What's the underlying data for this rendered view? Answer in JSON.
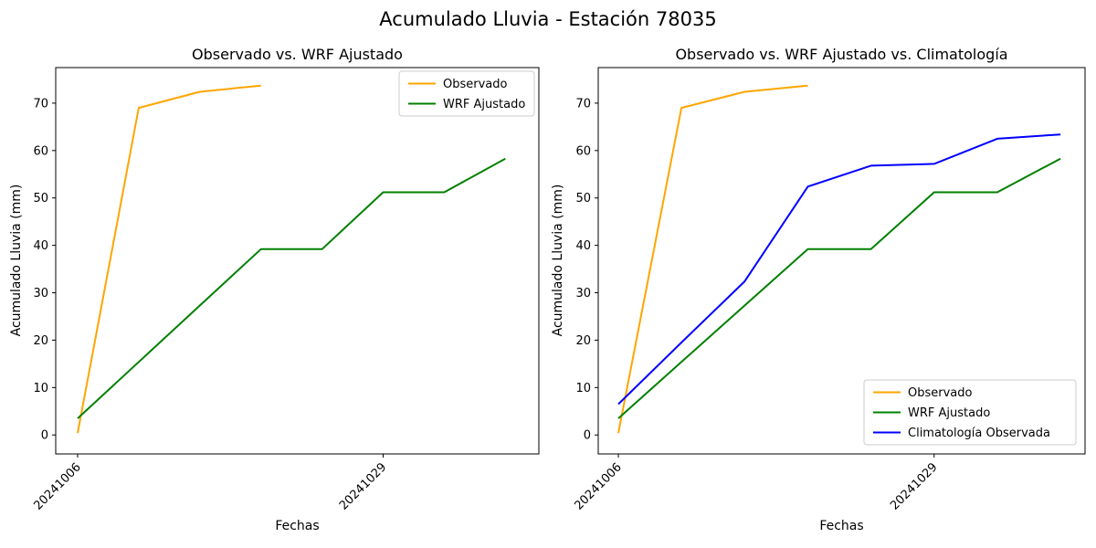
{
  "suptitle": "Acumulado Lluvia - Estación 78035",
  "chart_data": [
    {
      "type": "line",
      "title": "Observado vs. WRF Ajustado",
      "xlabel": "Fechas",
      "ylabel": "Acumulado Lluvia (mm)",
      "x_count": 8,
      "x_ticks": [
        {
          "index": 0,
          "label": "20241006"
        },
        {
          "index": 5,
          "label": "20241029"
        }
      ],
      "y_ticks": [
        0,
        10,
        20,
        30,
        40,
        50,
        60,
        70
      ],
      "ylim": [
        -4,
        77.5
      ],
      "grid": false,
      "legend_position": "upper-right",
      "series": [
        {
          "name": "Observado",
          "color": "#FFA500",
          "values": [
            0.4,
            69.0,
            72.4,
            73.7,
            null,
            null,
            null,
            null
          ]
        },
        {
          "name": "WRF Ajustado",
          "color": "#008000",
          "values": [
            3.5,
            15.4,
            27.3,
            39.2,
            39.2,
            51.2,
            51.2,
            58.3
          ]
        }
      ]
    },
    {
      "type": "line",
      "title": "Observado vs. WRF Ajustado vs. Climatología",
      "xlabel": "Fechas",
      "ylabel": "Acumulado Lluvia (mm)",
      "x_count": 8,
      "x_ticks": [
        {
          "index": 0,
          "label": "20241006"
        },
        {
          "index": 5,
          "label": "20241029"
        }
      ],
      "y_ticks": [
        0,
        10,
        20,
        30,
        40,
        50,
        60,
        70
      ],
      "ylim": [
        -4,
        77.5
      ],
      "grid": false,
      "legend_position": "lower-right",
      "series": [
        {
          "name": "Observado",
          "color": "#FFA500",
          "values": [
            0.4,
            69.0,
            72.4,
            73.7,
            null,
            null,
            null,
            null
          ]
        },
        {
          "name": "WRF Ajustado",
          "color": "#008000",
          "values": [
            3.5,
            15.4,
            27.3,
            39.2,
            39.2,
            51.2,
            51.2,
            58.3
          ]
        },
        {
          "name": "Climatología Observada",
          "color": "#0000FF",
          "values": [
            6.5,
            19.5,
            32.4,
            52.4,
            56.8,
            57.2,
            62.5,
            63.4
          ]
        }
      ]
    }
  ]
}
